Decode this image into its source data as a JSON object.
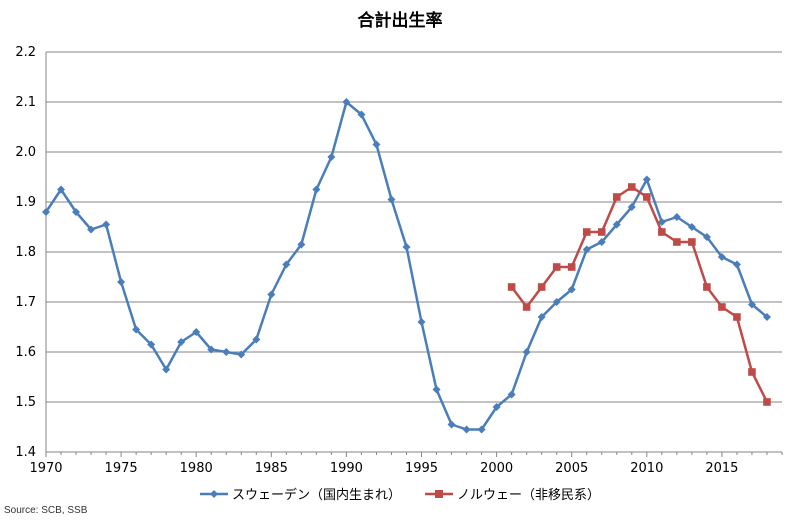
{
  "chart_data": {
    "type": "line",
    "title": "合計出生率",
    "xlabel": "",
    "ylabel": "",
    "xlim": [
      1970,
      2019
    ],
    "ylim": [
      1.4,
      2.2
    ],
    "x_ticks": [
      1970,
      1975,
      1980,
      1985,
      1990,
      1995,
      2000,
      2005,
      2010,
      2015
    ],
    "y_ticks": [
      "1.4",
      "1.5",
      "1.6",
      "1.7",
      "1.8",
      "1.9",
      "2.0",
      "2.1",
      "2.2"
    ],
    "grid": "horizontal",
    "legend_position": "bottom",
    "series": [
      {
        "name": "スウェーデン（国内生まれ）",
        "color": "#4A7EBB",
        "marker": "diamond",
        "points": [
          [
            1970,
            1.88
          ],
          [
            1971,
            1.925
          ],
          [
            1972,
            1.88
          ],
          [
            1973,
            1.845
          ],
          [
            1974,
            1.855
          ],
          [
            1975,
            1.74
          ],
          [
            1976,
            1.645
          ],
          [
            1977,
            1.615
          ],
          [
            1978,
            1.565
          ],
          [
            1979,
            1.62
          ],
          [
            1980,
            1.64
          ],
          [
            1981,
            1.605
          ],
          [
            1982,
            1.6
          ],
          [
            1983,
            1.595
          ],
          [
            1984,
            1.625
          ],
          [
            1985,
            1.715
          ],
          [
            1986,
            1.775
          ],
          [
            1987,
            1.815
          ],
          [
            1988,
            1.925
          ],
          [
            1989,
            1.99
          ],
          [
            1990,
            2.1
          ],
          [
            1991,
            2.075
          ],
          [
            1992,
            2.015
          ],
          [
            1993,
            1.905
          ],
          [
            1994,
            1.81
          ],
          [
            1995,
            1.66
          ],
          [
            1996,
            1.525
          ],
          [
            1997,
            1.455
          ],
          [
            1998,
            1.445
          ],
          [
            1999,
            1.445
          ],
          [
            2000,
            1.49
          ],
          [
            2001,
            1.515
          ],
          [
            2002,
            1.6
          ],
          [
            2003,
            1.67
          ],
          [
            2004,
            1.7
          ],
          [
            2005,
            1.725
          ],
          [
            2006,
            1.805
          ],
          [
            2007,
            1.82
          ],
          [
            2008,
            1.855
          ],
          [
            2009,
            1.89
          ],
          [
            2010,
            1.945
          ],
          [
            2011,
            1.86
          ],
          [
            2012,
            1.87
          ],
          [
            2013,
            1.85
          ],
          [
            2014,
            1.83
          ],
          [
            2015,
            1.79
          ],
          [
            2016,
            1.775
          ],
          [
            2017,
            1.695
          ],
          [
            2018,
            1.67
          ]
        ]
      },
      {
        "name": "ノルウェー（非移民系）",
        "color": "#BE4B48",
        "marker": "square",
        "points": [
          [
            2001,
            1.73
          ],
          [
            2002,
            1.69
          ],
          [
            2003,
            1.73
          ],
          [
            2004,
            1.77
          ],
          [
            2005,
            1.77
          ],
          [
            2006,
            1.84
          ],
          [
            2007,
            1.84
          ],
          [
            2008,
            1.91
          ],
          [
            2009,
            1.93
          ],
          [
            2010,
            1.91
          ],
          [
            2011,
            1.84
          ],
          [
            2012,
            1.82
          ],
          [
            2013,
            1.82
          ],
          [
            2014,
            1.73
          ],
          [
            2015,
            1.69
          ],
          [
            2016,
            1.67
          ],
          [
            2017,
            1.56
          ],
          [
            2018,
            1.5
          ]
        ]
      }
    ]
  },
  "source": "Source: SCB, SSB"
}
